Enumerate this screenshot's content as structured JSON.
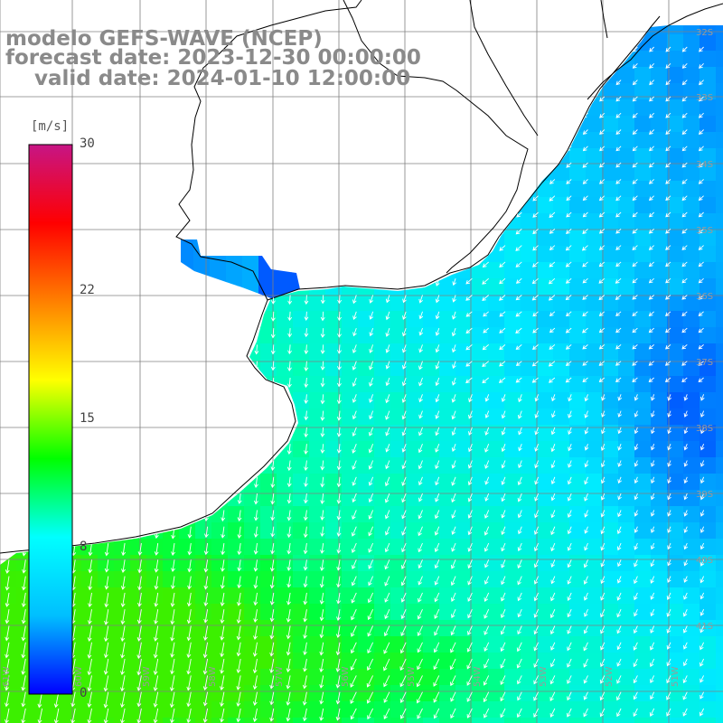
{
  "title": {
    "line1": "modelo GEFS-WAVE (NCEP)",
    "line2": "forecast date: 2023-12-30 00:00:00",
    "line3": "    valid date: 2024-01-10 12:00:00"
  },
  "colorbar": {
    "unit": "[m/s]",
    "ticks": [
      {
        "label": "30",
        "value": 30
      },
      {
        "label": "22",
        "value": 22
      },
      {
        "label": "15",
        "value": 15
      },
      {
        "label": "8",
        "value": 8
      },
      {
        "label": "0",
        "value": 0
      }
    ],
    "stops": [
      "#0000ff",
      "#00bfff",
      "#00ffff",
      "#00ff00",
      "#ffff00",
      "#ff8000",
      "#ff0000",
      "#c71585"
    ]
  },
  "grid": {
    "lat_labels": [
      "32S",
      "33S",
      "34S",
      "35S",
      "36S",
      "37S",
      "38S",
      "39S",
      "40S",
      "41S"
    ],
    "lon_labels": [
      "61W",
      "60W",
      "59W",
      "58W",
      "57W",
      "56W",
      "55W",
      "54W",
      "53W",
      "52W",
      "51W"
    ]
  },
  "colors": {
    "land": "#ffffff",
    "coast": "#000000",
    "grid_line": "#808080",
    "arrows": "#ffffff"
  },
  "icons": {
    "wind_arrow": "wind-vector-icon"
  }
}
